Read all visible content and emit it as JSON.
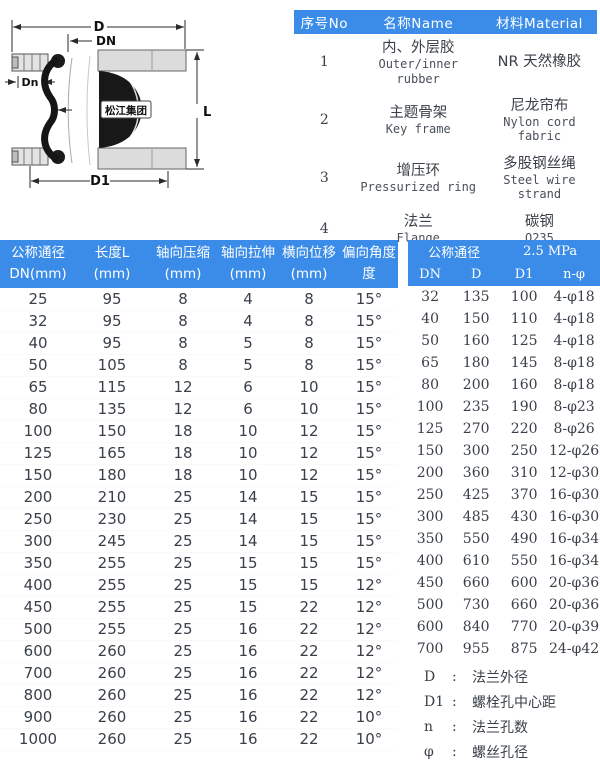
{
  "colors": {
    "header_blue": "#3b8ce8",
    "text_dark": "#3a4049",
    "page_bg": "#ffffff",
    "diagram_rubber_black": "#181818",
    "diagram_flange_gray": "#dcdcdc"
  },
  "diagram": {
    "logo_text": "松江集团",
    "dim_labels": {
      "d": "D",
      "dn": "DN",
      "dn_inner": "Dn",
      "l": "L",
      "d1": "D1"
    }
  },
  "material_table": {
    "headers": [
      "序号No",
      "名称Name",
      "材料Material"
    ],
    "rows": [
      {
        "no": "1",
        "name_cn": "内、外层胶",
        "name_en": "Outer/inner rubber",
        "material_cn": "NR 天然橡胶",
        "material_en": ""
      },
      {
        "no": "2",
        "name_cn": "主题骨架",
        "name_en": "Key frame",
        "material_cn": "尼龙帘布",
        "material_en": "Nylon cord fabric"
      },
      {
        "no": "3",
        "name_cn": "增压环",
        "name_en": "Pressurized ring",
        "material_cn": "多股钢丝绳",
        "material_en": "Steel wire strand"
      },
      {
        "no": "4",
        "name_cn": "法兰",
        "name_en": "Flange",
        "material_cn": "碳钢",
        "material_en": "Q235"
      }
    ]
  },
  "spec_table": {
    "headers": [
      [
        "公称通径",
        "DN(mm)"
      ],
      [
        "长度L",
        "(mm)"
      ],
      [
        "轴向压缩",
        "(mm)"
      ],
      [
        "轴向拉伸",
        "(mm)"
      ],
      [
        "横向位移",
        "(mm)"
      ],
      [
        "偏向角度",
        "度"
      ]
    ],
    "rows": [
      [
        "25",
        "95",
        "8",
        "4",
        "8",
        "15°"
      ],
      [
        "32",
        "95",
        "8",
        "4",
        "8",
        "15°"
      ],
      [
        "40",
        "95",
        "8",
        "5",
        "8",
        "15°"
      ],
      [
        "50",
        "105",
        "8",
        "5",
        "8",
        "15°"
      ],
      [
        "65",
        "115",
        "12",
        "6",
        "10",
        "15°"
      ],
      [
        "80",
        "135",
        "12",
        "6",
        "10",
        "15°"
      ],
      [
        "100",
        "150",
        "18",
        "10",
        "12",
        "15°"
      ],
      [
        "125",
        "165",
        "18",
        "10",
        "12",
        "15°"
      ],
      [
        "150",
        "180",
        "18",
        "10",
        "12",
        "15°"
      ],
      [
        "200",
        "210",
        "25",
        "14",
        "15",
        "15°"
      ],
      [
        "250",
        "230",
        "25",
        "14",
        "15",
        "15°"
      ],
      [
        "300",
        "245",
        "25",
        "14",
        "15",
        "15°"
      ],
      [
        "350",
        "255",
        "25",
        "15",
        "15",
        "15°"
      ],
      [
        "400",
        "255",
        "25",
        "15",
        "15",
        "12°"
      ],
      [
        "450",
        "255",
        "25",
        "15",
        "22",
        "12°"
      ],
      [
        "500",
        "255",
        "25",
        "16",
        "22",
        "12°"
      ],
      [
        "600",
        "260",
        "25",
        "16",
        "22",
        "12°"
      ],
      [
        "700",
        "260",
        "25",
        "16",
        "22",
        "12°"
      ],
      [
        "800",
        "260",
        "25",
        "16",
        "22",
        "12°"
      ],
      [
        "900",
        "260",
        "25",
        "16",
        "22",
        "10°"
      ],
      [
        "1000",
        "260",
        "25",
        "16",
        "22",
        "10°"
      ]
    ]
  },
  "flange_table": {
    "group_left": "公称通径",
    "group_right": "2.5 MPa",
    "headers": [
      "DN",
      "D",
      "D1",
      "n-φ"
    ],
    "rows": [
      [
        "32",
        "135",
        "100",
        "4-φ18"
      ],
      [
        "40",
        "150",
        "110",
        "4-φ18"
      ],
      [
        "50",
        "160",
        "125",
        "4-φ18"
      ],
      [
        "65",
        "180",
        "145",
        "8-φ18"
      ],
      [
        "80",
        "200",
        "160",
        "8-φ18"
      ],
      [
        "100",
        "235",
        "190",
        "8-φ23"
      ],
      [
        "125",
        "270",
        "220",
        "8-φ26"
      ],
      [
        "150",
        "300",
        "250",
        "12-φ26"
      ],
      [
        "200",
        "360",
        "310",
        "12-φ30"
      ],
      [
        "250",
        "425",
        "370",
        "16-φ30"
      ],
      [
        "300",
        "485",
        "430",
        "16-φ30"
      ],
      [
        "350",
        "550",
        "490",
        "16-φ34"
      ],
      [
        "400",
        "610",
        "550",
        "16-φ34"
      ],
      [
        "450",
        "660",
        "600",
        "20-φ36"
      ],
      [
        "500",
        "730",
        "660",
        "20-φ36"
      ],
      [
        "600",
        "840",
        "770",
        "20-φ39"
      ],
      [
        "700",
        "955",
        "875",
        "24-φ42"
      ]
    ],
    "legend_colon": ":",
    "legend": [
      {
        "symbol": "D",
        "desc": "法兰外径"
      },
      {
        "symbol": "D1",
        "desc": "螺栓孔中心距"
      },
      {
        "symbol": "n",
        "desc": "法兰孔数"
      },
      {
        "symbol": "φ",
        "desc": "螺丝孔径"
      }
    ]
  }
}
